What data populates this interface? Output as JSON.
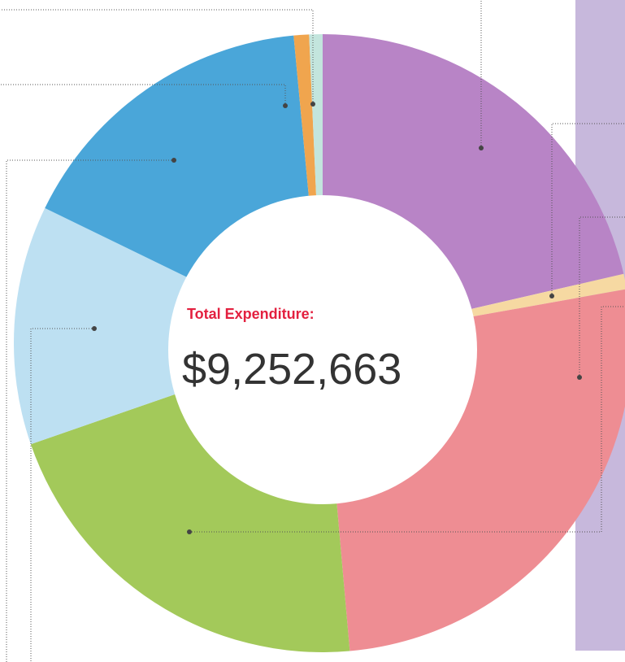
{
  "chart_data": {
    "type": "donut",
    "values": [
      21.4,
      0.8,
      26.4,
      21.1,
      12.5,
      16.3,
      0.8,
      0.7
    ],
    "colors": [
      "#b884c6",
      "#f6d9a2",
      "#ee8d93",
      "#a3c95a",
      "#bde0f2",
      "#4aa6d9",
      "#f0a54e",
      "#c3e5dd"
    ],
    "center_label": "Total Expenditure:",
    "center_value": "$9,252,663"
  }
}
